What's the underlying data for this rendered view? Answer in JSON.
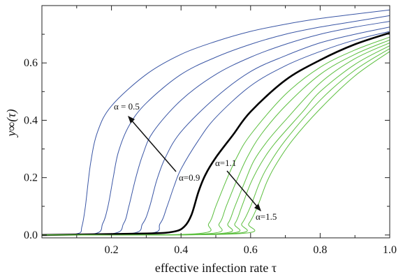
{
  "chart_data": {
    "type": "line",
    "xlabel": "effective infection rate τ",
    "ylabel": "y∞(τ)",
    "xlim": [
      0.0,
      1.0
    ],
    "ylim": [
      -0.01,
      0.8
    ],
    "xticks": [
      "0.2",
      "0.4",
      "0.6",
      "0.8",
      "1.0"
    ],
    "yticks": [
      "0.0",
      "0.2",
      "0.4",
      "0.6"
    ],
    "grid": false,
    "colors": {
      "low_alpha": "#3a56a5",
      "critical": "#000000",
      "high_alpha": "#5cbf3f"
    },
    "annotations": [
      {
        "text": "α = 0.5"
      },
      {
        "text": "α=0.9"
      },
      {
        "text": "α=1.1"
      },
      {
        "text": "α=1.5"
      }
    ],
    "series": [
      {
        "group": "low_alpha",
        "points": [
          [
            0.0,
            0.0
          ],
          [
            0.1,
            0.004
          ],
          [
            0.115,
            0.03
          ],
          [
            0.125,
            0.1
          ],
          [
            0.14,
            0.25
          ],
          [
            0.16,
            0.36
          ],
          [
            0.2,
            0.45
          ],
          [
            0.3,
            0.56
          ],
          [
            0.4,
            0.63
          ],
          [
            0.5,
            0.675
          ],
          [
            0.6,
            0.71
          ],
          [
            0.7,
            0.735
          ],
          [
            0.8,
            0.755
          ],
          [
            0.9,
            0.77
          ],
          [
            1.0,
            0.785
          ]
        ]
      },
      {
        "group": "low_alpha",
        "points": [
          [
            0.0,
            0.0
          ],
          [
            0.15,
            0.004
          ],
          [
            0.175,
            0.04
          ],
          [
            0.19,
            0.1
          ],
          [
            0.205,
            0.2
          ],
          [
            0.22,
            0.29
          ],
          [
            0.25,
            0.38
          ],
          [
            0.3,
            0.46
          ],
          [
            0.4,
            0.56
          ],
          [
            0.5,
            0.62
          ],
          [
            0.6,
            0.665
          ],
          [
            0.7,
            0.7
          ],
          [
            0.8,
            0.725
          ],
          [
            0.9,
            0.745
          ],
          [
            1.0,
            0.765
          ]
        ]
      },
      {
        "group": "low_alpha",
        "points": [
          [
            0.0,
            0.0
          ],
          [
            0.2,
            0.004
          ],
          [
            0.235,
            0.04
          ],
          [
            0.25,
            0.1
          ],
          [
            0.27,
            0.2
          ],
          [
            0.29,
            0.28
          ],
          [
            0.32,
            0.36
          ],
          [
            0.4,
            0.47
          ],
          [
            0.5,
            0.56
          ],
          [
            0.6,
            0.62
          ],
          [
            0.7,
            0.665
          ],
          [
            0.8,
            0.7
          ],
          [
            0.9,
            0.725
          ],
          [
            1.0,
            0.745
          ]
        ]
      },
      {
        "group": "low_alpha",
        "points": [
          [
            0.0,
            0.0
          ],
          [
            0.25,
            0.004
          ],
          [
            0.29,
            0.04
          ],
          [
            0.31,
            0.1
          ],
          [
            0.33,
            0.19
          ],
          [
            0.355,
            0.27
          ],
          [
            0.4,
            0.36
          ],
          [
            0.5,
            0.48
          ],
          [
            0.6,
            0.57
          ],
          [
            0.7,
            0.625
          ],
          [
            0.8,
            0.67
          ],
          [
            0.9,
            0.7
          ],
          [
            1.0,
            0.725
          ]
        ]
      },
      {
        "group": "low_alpha",
        "points": [
          [
            0.0,
            0.0
          ],
          [
            0.3,
            0.004
          ],
          [
            0.34,
            0.04
          ],
          [
            0.36,
            0.1
          ],
          [
            0.38,
            0.17
          ],
          [
            0.4,
            0.23
          ],
          [
            0.45,
            0.33
          ],
          [
            0.5,
            0.41
          ],
          [
            0.6,
            0.52
          ],
          [
            0.7,
            0.59
          ],
          [
            0.8,
            0.64
          ],
          [
            0.9,
            0.68
          ],
          [
            1.0,
            0.71
          ]
        ]
      },
      {
        "group": "critical",
        "points": [
          [
            0.0,
            0.0
          ],
          [
            0.3,
            0.005
          ],
          [
            0.38,
            0.012
          ],
          [
            0.41,
            0.03
          ],
          [
            0.43,
            0.07
          ],
          [
            0.45,
            0.15
          ],
          [
            0.47,
            0.21
          ],
          [
            0.5,
            0.27
          ],
          [
            0.55,
            0.35
          ],
          [
            0.6,
            0.43
          ],
          [
            0.7,
            0.54
          ],
          [
            0.8,
            0.61
          ],
          [
            0.9,
            0.665
          ],
          [
            1.0,
            0.705
          ]
        ]
      },
      {
        "group": "high_alpha",
        "points": [
          [
            0.0,
            0.0
          ],
          [
            0.44,
            0.004
          ],
          [
            0.48,
            0.04
          ],
          [
            0.5,
            0.1
          ],
          [
            0.53,
            0.19
          ],
          [
            0.56,
            0.27
          ],
          [
            0.6,
            0.35
          ],
          [
            0.7,
            0.49
          ],
          [
            0.8,
            0.585
          ],
          [
            0.9,
            0.645
          ],
          [
            1.0,
            0.69
          ]
        ]
      },
      {
        "group": "high_alpha",
        "points": [
          [
            0.0,
            0.0
          ],
          [
            0.47,
            0.004
          ],
          [
            0.51,
            0.04
          ],
          [
            0.53,
            0.1
          ],
          [
            0.56,
            0.19
          ],
          [
            0.59,
            0.27
          ],
          [
            0.63,
            0.35
          ],
          [
            0.7,
            0.45
          ],
          [
            0.8,
            0.56
          ],
          [
            0.9,
            0.63
          ],
          [
            1.0,
            0.68
          ]
        ]
      },
      {
        "group": "high_alpha",
        "points": [
          [
            0.0,
            0.0
          ],
          [
            0.5,
            0.004
          ],
          [
            0.535,
            0.04
          ],
          [
            0.555,
            0.1
          ],
          [
            0.585,
            0.19
          ],
          [
            0.61,
            0.26
          ],
          [
            0.65,
            0.33
          ],
          [
            0.7,
            0.4
          ],
          [
            0.8,
            0.53
          ],
          [
            0.9,
            0.615
          ],
          [
            1.0,
            0.67
          ]
        ]
      },
      {
        "group": "high_alpha",
        "points": [
          [
            0.0,
            0.0
          ],
          [
            0.52,
            0.004
          ],
          [
            0.555,
            0.04
          ],
          [
            0.575,
            0.1
          ],
          [
            0.6,
            0.18
          ],
          [
            0.63,
            0.25
          ],
          [
            0.67,
            0.32
          ],
          [
            0.75,
            0.43
          ],
          [
            0.8,
            0.5
          ],
          [
            0.9,
            0.595
          ],
          [
            1.0,
            0.66
          ]
        ]
      },
      {
        "group": "high_alpha",
        "points": [
          [
            0.0,
            0.0
          ],
          [
            0.54,
            0.004
          ],
          [
            0.575,
            0.04
          ],
          [
            0.6,
            0.1
          ],
          [
            0.625,
            0.18
          ],
          [
            0.65,
            0.24
          ],
          [
            0.7,
            0.33
          ],
          [
            0.8,
            0.47
          ],
          [
            0.9,
            0.575
          ],
          [
            1.0,
            0.65
          ]
        ]
      },
      {
        "group": "high_alpha",
        "points": [
          [
            0.0,
            0.0
          ],
          [
            0.56,
            0.004
          ],
          [
            0.595,
            0.04
          ],
          [
            0.62,
            0.1
          ],
          [
            0.645,
            0.18
          ],
          [
            0.67,
            0.24
          ],
          [
            0.72,
            0.33
          ],
          [
            0.8,
            0.44
          ],
          [
            0.9,
            0.555
          ],
          [
            1.0,
            0.64
          ]
        ]
      }
    ]
  }
}
